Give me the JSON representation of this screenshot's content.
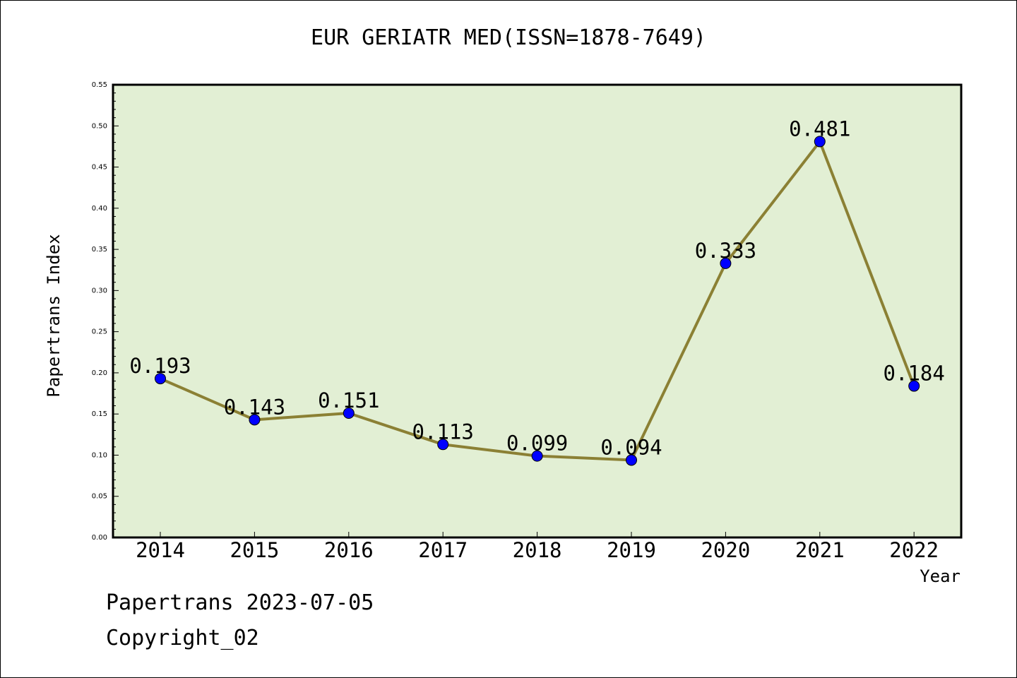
{
  "chart_data": {
    "type": "line",
    "title": "EUR GERIATR MED(ISSN=1878-7649)",
    "xlabel": "Year",
    "ylabel": "Papertrans Index",
    "categories": [
      "2014",
      "2015",
      "2016",
      "2017",
      "2018",
      "2019",
      "2020",
      "2021",
      "2022"
    ],
    "series": [
      {
        "values": [
          0.193,
          0.143,
          0.151,
          0.113,
          0.099,
          0.094,
          0.333,
          0.481,
          0.184
        ]
      }
    ],
    "data_labels": [
      "0.193",
      "0.143",
      "0.151",
      "0.113",
      "0.099",
      "0.094",
      "0.333",
      "0.481",
      "0.184"
    ],
    "ylim": [
      0,
      0.55
    ],
    "yticks": [
      "0.00",
      "0.05",
      "0.10",
      "0.15",
      "0.20",
      "0.25",
      "0.30",
      "0.35",
      "0.40",
      "0.45",
      "0.50",
      "0.55"
    ],
    "grid": false,
    "colors": {
      "plot_background": "#e2efd4",
      "line": "#8b8034",
      "marker": "#0000ff"
    }
  },
  "footer": {
    "line1": "Papertrans 2023-07-05",
    "line2": "Copyright_02"
  }
}
